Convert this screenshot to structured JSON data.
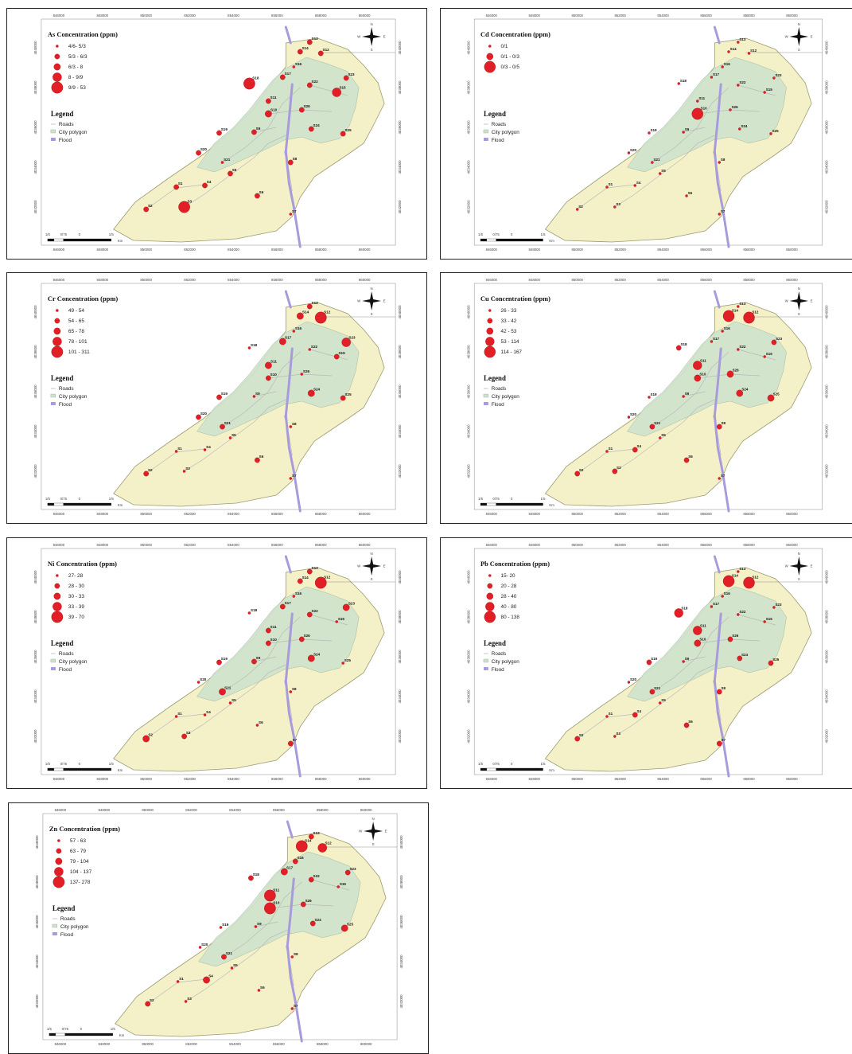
{
  "colors": {
    "dot": "#e21f26",
    "dotStroke": "#8a0d10",
    "land": "#f4f1c9",
    "city": "#cfe3cc",
    "flood": "#a79bdc",
    "roads": "#b9b9b9"
  },
  "legend_section": {
    "title": "Legend",
    "items": [
      "Roads",
      "City polygon",
      "Flood"
    ]
  },
  "compass": {
    "n": "N",
    "s": "S",
    "e": "E",
    "w": "W"
  },
  "scalebar": {
    "labels": [
      "1/5",
      "0/75",
      "0",
      "1/5"
    ],
    "unit": "Km"
  },
  "x_ticks": [
    "846000",
    "848000",
    "850000",
    "852000",
    "854000",
    "856000",
    "858000",
    "860000"
  ],
  "y_ticks": [
    "4040000",
    "4038000",
    "4036000",
    "4034000",
    "4032000"
  ],
  "sites": [
    "S1",
    "S2",
    "S3",
    "S4",
    "S5",
    "S6",
    "S7",
    "S8",
    "S9",
    "S10",
    "S11",
    "S12",
    "S13",
    "S14",
    "S15",
    "S16",
    "S17",
    "S18",
    "S19",
    "S20",
    "S21",
    "S22",
    "S23",
    "S24",
    "S25",
    "S26"
  ],
  "maps": [
    {
      "title": "As Concentration (ppm)",
      "classes": [
        "4/6- 5/3",
        "5/3 - 6/3",
        "6/3 - 8",
        "8 - 9/9",
        "9/9 - 53"
      ],
      "site_class": [
        1,
        1,
        4,
        1,
        1,
        1,
        0,
        1,
        1,
        2,
        1,
        1,
        1,
        1,
        3,
        0,
        1,
        4,
        1,
        1,
        0,
        1,
        1,
        1,
        1,
        1
      ]
    },
    {
      "title": "Cd Concentration (ppm)",
      "classes": [
        "0/1",
        "0/1 - 0/3",
        "0/3 - 0/5"
      ],
      "site_class": [
        0,
        0,
        0,
        0,
        0,
        0,
        0,
        0,
        0,
        2,
        0,
        0,
        0,
        0,
        0,
        0,
        0,
        0,
        0,
        0,
        0,
        0,
        0,
        0,
        0,
        0
      ]
    },
    {
      "title": "Cr Concentration (ppm)",
      "classes": [
        "49 - 54",
        "54 - 65",
        "65 - 78",
        "78 - 101",
        "101 - 311"
      ],
      "site_class": [
        0,
        1,
        0,
        0,
        0,
        1,
        0,
        0,
        0,
        1,
        2,
        4,
        1,
        2,
        1,
        0,
        2,
        0,
        1,
        1,
        1,
        0,
        3,
        2,
        1,
        0
      ]
    },
    {
      "title": "Cu Concentration (ppm)",
      "classes": [
        "26 - 33",
        "33 - 42",
        "42 - 53",
        "53 - 114",
        "114 - 167"
      ],
      "site_class": [
        0,
        1,
        1,
        1,
        0,
        1,
        0,
        1,
        0,
        2,
        3,
        4,
        0,
        4,
        0,
        0,
        0,
        1,
        0,
        0,
        1,
        0,
        1,
        2,
        2,
        2
      ]
    },
    {
      "title": "Ni Concentration (ppm)",
      "classes": [
        "27- 28",
        "28 - 30",
        "30 - 33",
        "33 - 39",
        "39 - 70"
      ],
      "site_class": [
        0,
        2,
        1,
        0,
        0,
        0,
        1,
        0,
        1,
        1,
        1,
        4,
        1,
        1,
        0,
        0,
        1,
        0,
        1,
        0,
        2,
        1,
        2,
        2,
        0,
        1
      ]
    },
    {
      "title": "Pb Concentration (ppm)",
      "classes": [
        "15- 20",
        "20 - 28",
        "28 - 40",
        "40 - 80",
        "80 - 138"
      ],
      "site_class": [
        0,
        1,
        0,
        1,
        0,
        1,
        1,
        1,
        0,
        2,
        3,
        4,
        0,
        4,
        0,
        0,
        0,
        3,
        1,
        0,
        1,
        0,
        0,
        1,
        1,
        1
      ]
    },
    {
      "title": "Zn Concentration (ppm)",
      "classes": [
        "57 - 63",
        "63 - 79",
        "79 - 104",
        "104 - 137",
        "137- 278"
      ],
      "site_class": [
        0,
        1,
        0,
        2,
        0,
        0,
        0,
        0,
        0,
        4,
        4,
        3,
        1,
        4,
        0,
        1,
        2,
        1,
        0,
        0,
        1,
        1,
        1,
        1,
        2,
        1
      ]
    }
  ]
}
